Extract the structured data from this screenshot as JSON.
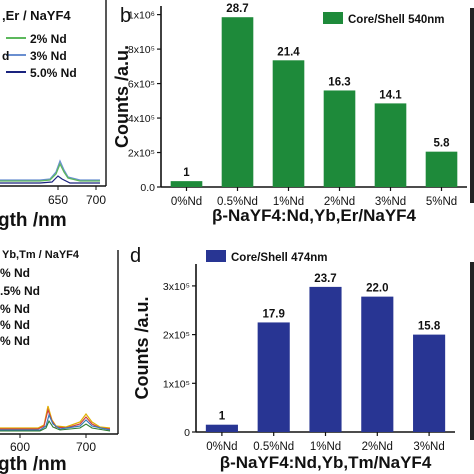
{
  "left_top": {
    "legend_title": ",Er / NaYF4",
    "legend": [
      {
        "label": "2% Nd",
        "color": "#5cb85c"
      },
      {
        "label": "3% Nd",
        "color": "#6a8fd0"
      },
      {
        "label": "5.0% Nd",
        "color": "#1a237e"
      }
    ],
    "legend_fragment": "d",
    "x_ticks": [
      "650",
      "700"
    ],
    "xlabel": "gth /nm"
  },
  "left_bottom": {
    "legend_title": "Yb,Tm / NaYF4",
    "labels": [
      "% Nd",
      ".5% Nd",
      "% Nd",
      "% Nd",
      "% Nd"
    ],
    "x_ticks": [
      "600",
      "700"
    ],
    "xlabel": "gth /nm"
  },
  "chart_data": [
    {
      "panel": "b",
      "type": "bar",
      "categories": [
        "0%Nd",
        "0.5%Nd",
        "1%Nd",
        "2%Nd",
        "3%Nd",
        "5%Nd"
      ],
      "values": [
        34000,
        985000,
        735000,
        560000,
        485000,
        205000
      ],
      "data_labels": [
        "1",
        "28.7",
        "21.4",
        "16.3",
        "14.1",
        "5.8"
      ],
      "color": "#1e8a3a",
      "legend": "Core/Shell 540nm",
      "legend_position": "top-right",
      "ylabel": "Counts /a.u.",
      "xlabel": "β-NaYF4:Nd,Yb,Er/NaYF4",
      "ylim": [
        0,
        1050000
      ],
      "y_ticks": [
        {
          "value": 0,
          "label": "0.0"
        },
        {
          "value": 200000,
          "label": "2x10⁵"
        },
        {
          "value": 400000,
          "label": "4x10⁵"
        },
        {
          "value": 600000,
          "label": "6x10⁵"
        },
        {
          "value": 800000,
          "label": "8x10⁵"
        },
        {
          "value": 1000000,
          "label": "1x10⁶"
        }
      ]
    },
    {
      "panel": "d",
      "type": "bar",
      "categories": [
        "0%Nd",
        "0.5%Nd",
        "1%Nd",
        "2%Nd",
        "3%Nd"
      ],
      "values": [
        15000,
        225000,
        298000,
        278000,
        200000
      ],
      "data_labels": [
        "1",
        "17.9",
        "23.7",
        "22.0",
        "15.8"
      ],
      "color": "#283593",
      "legend": "Core/Shell 474nm",
      "legend_position": "top-left",
      "ylabel": "Counts /a.u.",
      "xlabel": "β-NaYF4:Nd,Yb,Tm/NaYF4",
      "ylim": [
        0,
        345000
      ],
      "y_ticks": [
        {
          "value": 0,
          "label": "0"
        },
        {
          "value": 100000,
          "label": "1x10⁵"
        },
        {
          "value": 200000,
          "label": "2x10⁵"
        },
        {
          "value": 300000,
          "label": "3x10⁵"
        }
      ]
    }
  ]
}
